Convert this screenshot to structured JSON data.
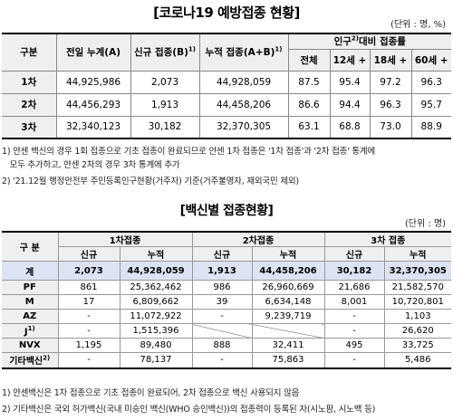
{
  "table1": {
    "title": "코로나19 예방접종 현황",
    "unit": "(단위 : 명, %)",
    "headers": {
      "group": "구분",
      "prev_total": "전일 누계(A)",
      "new": "신규 접종(B)",
      "new_sup": "1)",
      "cumulative": "누적 접종(A+B)",
      "cumulative_sup": "1)",
      "pop_ratio_pre": "인구",
      "pop_ratio_sup": "2)",
      "pop_ratio_post": "대비 접종률",
      "total": "전체",
      "age12": "12세 +",
      "age18": "18세 +",
      "age60": "60세 +"
    },
    "rows": [
      {
        "label": "1차",
        "prev_total": "44,925,986",
        "new": "2,073",
        "cumulative": "44,928,059",
        "total": "87.5",
        "age12": "95.4",
        "age18": "97.2",
        "age60": "96.3"
      },
      {
        "label": "2차",
        "prev_total": "44,456,293",
        "new": "1,913",
        "cumulative": "44,458,206",
        "total": "86.6",
        "age12": "94.4",
        "age18": "96.3",
        "age60": "95.7"
      },
      {
        "label": "3차",
        "prev_total": "32,340,123",
        "new": "30,182",
        "cumulative": "32,370,305",
        "total": "63.1",
        "age12": "68.8",
        "age18": "73.0",
        "age60": "88.9"
      }
    ],
    "notes": [
      "1) 얀센 백신의 경우 1회 접종으로 기초 접종이 완료되므로 얀센 1차 접종은 '1차 접종'과 '2차 접종' 통계에",
      "   모두 추가하고, 얀센 2차의 경우 3차 통계에 추가",
      "2) '21.12월 행정안전부 주민등록인구현황(거주자) 기준(거주불명자, 재외국민 제외)"
    ]
  },
  "table2": {
    "title": "백신별 접종현황",
    "unit": "(단위 : 명)",
    "headers": {
      "group": "구 분",
      "dose1": "1차접종",
      "dose2": "2차접종",
      "dose3": "3차 접종",
      "new": "신규",
      "cumulative": "누적"
    },
    "rows": [
      {
        "label": "계",
        "sup": "",
        "d1_new": "2,073",
        "d1_cum": "44,928,059",
        "d2_new": "1,913",
        "d2_cum": "44,458,206",
        "d3_new": "30,182",
        "d3_cum": "32,370,305"
      },
      {
        "label": "PF",
        "sup": "",
        "d1_new": "861",
        "d1_cum": "25,362,462",
        "d2_new": "986",
        "d2_cum": "26,960,669",
        "d3_new": "21,686",
        "d3_cum": "21,582,570"
      },
      {
        "label": "M",
        "sup": "",
        "d1_new": "17",
        "d1_cum": "6,809,662",
        "d2_new": "39",
        "d2_cum": "6,634,148",
        "d3_new": "8,001",
        "d3_cum": "10,720,801"
      },
      {
        "label": "AZ",
        "sup": "",
        "d1_new": "-",
        "d1_cum": "11,072,922",
        "d2_new": "-",
        "d2_cum": "9,239,719",
        "d3_new": "-",
        "d3_cum": "1,103"
      },
      {
        "label": "J",
        "sup": "1)",
        "d1_new": "-",
        "d1_cum": "1,515,396",
        "d2_new": "",
        "d2_cum": "",
        "d3_new": "-",
        "d3_cum": "26,620"
      },
      {
        "label": "NVX",
        "sup": "",
        "d1_new": "1,195",
        "d1_cum": "89,480",
        "d2_new": "888",
        "d2_cum": "32,411",
        "d3_new": "495",
        "d3_cum": "33,725"
      },
      {
        "label": "기타백신",
        "sup": "2)",
        "d1_new": "-",
        "d1_cum": "78,137",
        "d2_new": "-",
        "d2_cum": "75,863",
        "d3_new": "-",
        "d3_cum": "5,486"
      }
    ],
    "notes": [
      "1) 얀센백신은 1차 접종으로 기초 접종이 완료되어, 2차 접종으로 백신 사용되지 않음",
      "2) 기타백신은 국외 허가백신(국내 미승인 백신(WHO 승인백신))의 접종력이 등록된 자(시노팜, 시노백 등)"
    ]
  }
}
